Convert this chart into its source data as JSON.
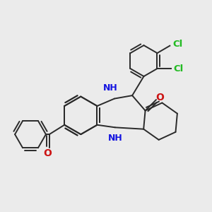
{
  "bg_color": "#ebebeb",
  "bond_color": "#2a2a2a",
  "N_color": "#1414e0",
  "O_color": "#cc1414",
  "Cl_color": "#22bb22",
  "figsize": [
    3.0,
    3.0
  ],
  "dpi": 100,
  "lw": 1.4,
  "xlim": [
    -5.0,
    5.0
  ],
  "ylim": [
    -5.0,
    5.0
  ]
}
